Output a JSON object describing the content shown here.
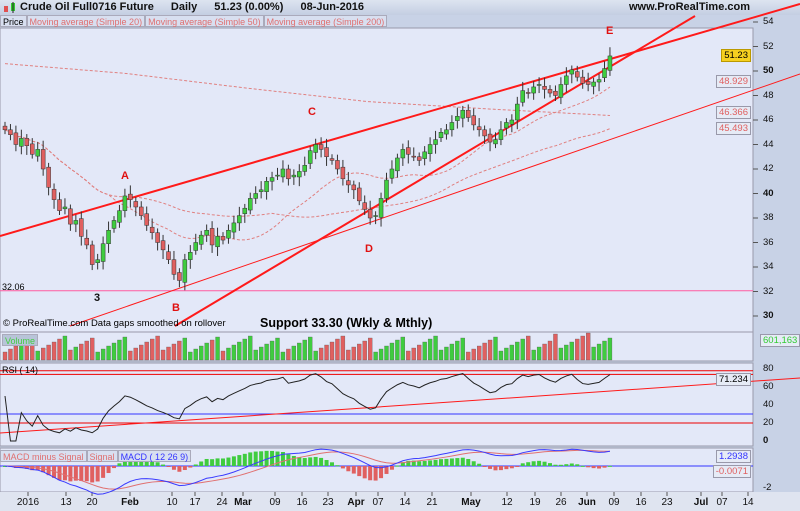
{
  "header": {
    "title": "Crude Oil Full0716 Future",
    "period": "Daily",
    "last": "51.23 (0.00%)",
    "date": "08-Jun-2016",
    "site": "www.ProRealTime.com"
  },
  "legend": {
    "price": "Price",
    "ma20": "Moving average (Simple 20)",
    "ma50": "Moving average (Simple 50)",
    "ma200": "Moving average (Simple 200)",
    "volume": "Volume",
    "rsi": "RSI ( 14)",
    "macd_hist": "MACD minus Signal",
    "signal": "Signal",
    "macd": "MACD ( 12 26 9)"
  },
  "footer_note": "© ProRealTime.com  Data gaps smoothed on rollover",
  "annotation": "Support 33.30 (Wkly & Mthly)",
  "wave_labels": [
    "3",
    "A",
    "B",
    "C",
    "D",
    "E"
  ],
  "support_label": "32.06",
  "value_tags": {
    "last": "51.23",
    "ma_a": "48.929",
    "ma_b": "46.366",
    "ma_c": "45.493",
    "volume": "601,163",
    "rsi": "71.234",
    "macd": "1.2938",
    "macd_diff": "-0.0071"
  },
  "colors": {
    "up": "#3fcc3f",
    "down": "#e06060",
    "trendline": "#ff1a1a",
    "support": "#ff5aa0",
    "ma": "#e08080",
    "macd": "#3a3aff"
  },
  "chart_data": {
    "type": "candlestick",
    "title": "Crude Oil Full0716 Future Daily",
    "price_axis": {
      "ticks": [
        54,
        52,
        50,
        48,
        46,
        44,
        42,
        40,
        38,
        36,
        34,
        32,
        30
      ],
      "range": [
        29,
        55
      ]
    },
    "x_tick_labels": [
      "2016",
      "13",
      "20",
      "Feb",
      "10",
      "17",
      "24",
      "Mar",
      "09",
      "16",
      "23",
      "Apr",
      "07",
      "14",
      "21",
      "May",
      "12",
      "19",
      "26",
      "Jun",
      "09",
      "16",
      "23",
      "Jul",
      "07",
      "14"
    ],
    "close": [
      45.2,
      44.8,
      44.0,
      44.5,
      43.9,
      43.2,
      43.6,
      42.0,
      40.5,
      39.5,
      38.6,
      38.9,
      37.5,
      37.8,
      36.5,
      35.8,
      34.2,
      34.6,
      35.9,
      37.0,
      37.8,
      38.6,
      39.8,
      39.5,
      38.9,
      38.2,
      37.4,
      36.8,
      36.0,
      35.4,
      34.6,
      33.4,
      32.9,
      34.6,
      35.2,
      36.0,
      36.6,
      37.0,
      35.8,
      36.5,
      36.2,
      37.0,
      37.6,
      38.2,
      38.8,
      39.6,
      40.0,
      40.3,
      41.0,
      41.3,
      41.5,
      42.0,
      41.2,
      41.5,
      41.8,
      42.3,
      43.5,
      44.0,
      43.6,
      43.0,
      42.7,
      42.0,
      41.2,
      40.7,
      40.3,
      39.4,
      38.7,
      38.0,
      38.2,
      39.6,
      41.1,
      42.0,
      42.9,
      43.6,
      43.2,
      43.0,
      42.7,
      43.4,
      44.0,
      44.4,
      45.0,
      45.2,
      45.8,
      46.3,
      46.8,
      46.2,
      45.6,
      45.2,
      44.7,
      44.2,
      44.4,
      45.2,
      45.8,
      46.0,
      47.3,
      48.4,
      48.2,
      48.7,
      48.9,
      48.5,
      48.2,
      48.0,
      48.9,
      49.6,
      50.1,
      49.5,
      49.0,
      48.9,
      49.1,
      49.3,
      50.2,
      51.23
    ],
    "sma200": [
      50.6,
      49.8,
      48.6,
      47.5,
      46.9,
      46.37
    ],
    "support_level": 32.06,
    "rsi_axis": {
      "ticks": [
        80,
        60,
        40,
        20,
        0
      ]
    },
    "rsi_levels": [
      78,
      74,
      30,
      20
    ],
    "macd_axis": {
      "ticks": [
        -2
      ]
    }
  }
}
